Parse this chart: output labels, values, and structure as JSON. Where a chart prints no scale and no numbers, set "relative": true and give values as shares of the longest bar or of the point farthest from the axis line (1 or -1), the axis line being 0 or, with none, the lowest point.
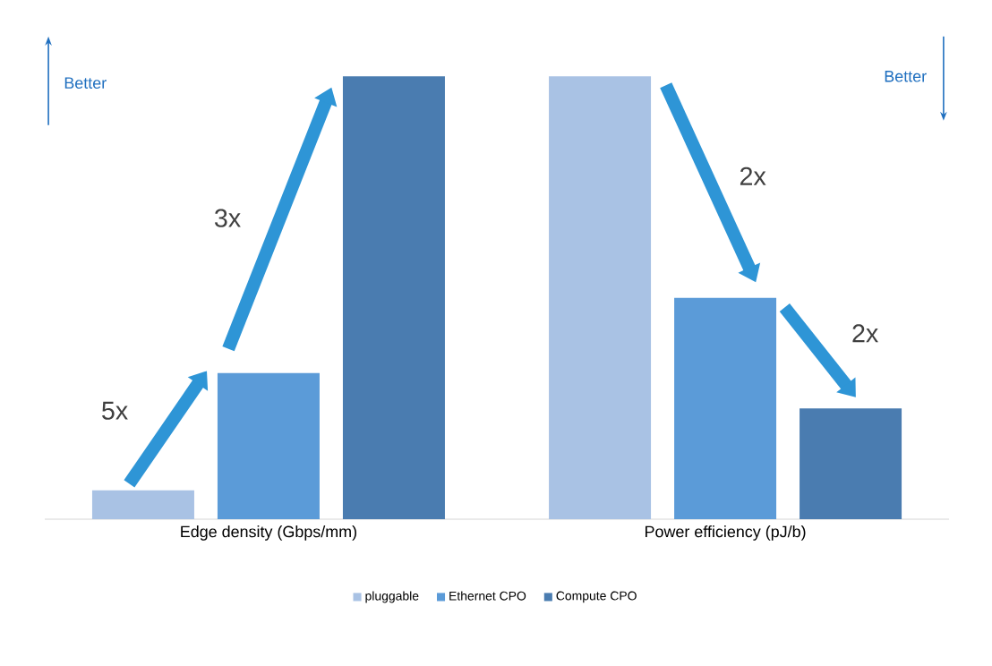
{
  "chart_data": {
    "type": "bar",
    "relative": true,
    "categories": [
      "Edge density (Gbps/mm)",
      "Power efficiency (pJ/b)"
    ],
    "series": [
      {
        "name": "pluggable",
        "color": "#a9c2e4",
        "values": [
          0.065,
          1.0
        ]
      },
      {
        "name": "Ethernet CPO",
        "color": "#5b9bd8",
        "values": [
          0.33,
          0.5
        ]
      },
      {
        "name": "Compute CPO",
        "color": "#4a7cb0",
        "values": [
          1.0,
          0.25
        ]
      }
    ],
    "annotations": [
      "Better",
      "Better",
      "5x",
      "3x",
      "2x",
      "2x"
    ],
    "legend": "bottom"
  }
}
